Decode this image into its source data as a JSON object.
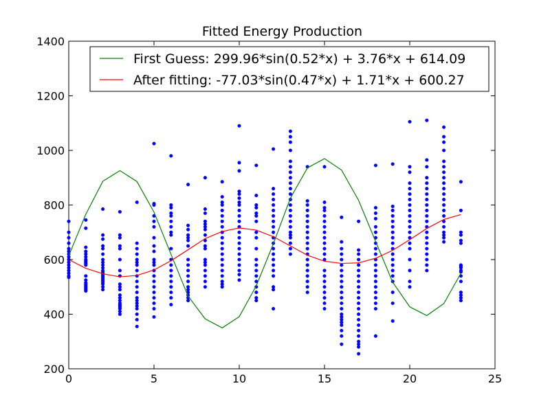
{
  "chart_data": {
    "type": "scatter",
    "title": "Fitted Energy Production",
    "xlabel": "",
    "ylabel": "",
    "xlim": [
      0,
      25
    ],
    "ylim": [
      200,
      1400
    ],
    "xticks": [
      0,
      5,
      10,
      15,
      20,
      25
    ],
    "yticks": [
      200,
      400,
      600,
      800,
      1000,
      1200,
      1400
    ],
    "grid": false,
    "legend_placement": "top-right",
    "colors": {
      "scatter": "#0000ff",
      "first_guess": "#008000",
      "after_fitting": "#ff0000"
    },
    "scatter": {
      "x": [
        0,
        0,
        0,
        0,
        0,
        0,
        0,
        0,
        0,
        0,
        0,
        0,
        0,
        0,
        0,
        0,
        1,
        1,
        1,
        1,
        1,
        1,
        1,
        1,
        1,
        1,
        1,
        1,
        1,
        1,
        1,
        1,
        1,
        1,
        1,
        1,
        2,
        2,
        2,
        2,
        2,
        2,
        2,
        2,
        2,
        2,
        2,
        2,
        2,
        2,
        2,
        2,
        2,
        2,
        2,
        2,
        2,
        2,
        2,
        3,
        3,
        3,
        3,
        3,
        3,
        3,
        3,
        3,
        3,
        3,
        3,
        3,
        3,
        3,
        3,
        3,
        3,
        3,
        3,
        3,
        4,
        4,
        4,
        4,
        4,
        4,
        4,
        4,
        4,
        4,
        4,
        4,
        4,
        4,
        4,
        4,
        4,
        4,
        4,
        4,
        5,
        5,
        5,
        5,
        5,
        5,
        5,
        5,
        5,
        5,
        5,
        5,
        5,
        5,
        5,
        5,
        5,
        5,
        5,
        5,
        5,
        6,
        6,
        6,
        6,
        6,
        6,
        6,
        6,
        6,
        6,
        6,
        6,
        6,
        6,
        6,
        6,
        6,
        6,
        6,
        7,
        7,
        7,
        7,
        7,
        7,
        7,
        7,
        7,
        7,
        7,
        7,
        7,
        7,
        7,
        7,
        7,
        7,
        8,
        8,
        8,
        8,
        8,
        8,
        8,
        8,
        8,
        8,
        8,
        8,
        8,
        8,
        8,
        8,
        8,
        8,
        9,
        9,
        9,
        9,
        9,
        9,
        9,
        9,
        9,
        9,
        9,
        9,
        9,
        9,
        9,
        9,
        9,
        9,
        9,
        9,
        10,
        10,
        10,
        10,
        10,
        10,
        10,
        10,
        10,
        10,
        10,
        10,
        10,
        10,
        10,
        10,
        10,
        10,
        10,
        10,
        10,
        10,
        11,
        11,
        11,
        11,
        11,
        11,
        11,
        11,
        11,
        11,
        11,
        11,
        11,
        11,
        11,
        11,
        11,
        11,
        11,
        12,
        12,
        12,
        12,
        12,
        12,
        12,
        12,
        12,
        12,
        12,
        12,
        12,
        12,
        12,
        12,
        12,
        12,
        12,
        12,
        12,
        13,
        13,
        13,
        13,
        13,
        13,
        13,
        13,
        13,
        13,
        13,
        13,
        13,
        13,
        13,
        13,
        13,
        13,
        13,
        13,
        13,
        13,
        13,
        14,
        14,
        14,
        14,
        14,
        14,
        14,
        14,
        14,
        14,
        14,
        14,
        14,
        14,
        14,
        14,
        14,
        14,
        14,
        15,
        15,
        15,
        15,
        15,
        15,
        15,
        15,
        15,
        15,
        15,
        15,
        15,
        15,
        15,
        15,
        15,
        15,
        15,
        15,
        15,
        16,
        16,
        16,
        16,
        16,
        16,
        16,
        16,
        16,
        16,
        16,
        16,
        16,
        16,
        16,
        16,
        16,
        16,
        16,
        16,
        16,
        16,
        17,
        17,
        17,
        17,
        17,
        17,
        17,
        17,
        17,
        17,
        17,
        17,
        17,
        17,
        17,
        17,
        17,
        17,
        17,
        17,
        17,
        17,
        18,
        18,
        18,
        18,
        18,
        18,
        18,
        18,
        18,
        18,
        18,
        18,
        18,
        18,
        18,
        18,
        18,
        18,
        18,
        18,
        18,
        19,
        19,
        19,
        19,
        19,
        19,
        19,
        19,
        19,
        19,
        19,
        19,
        19,
        19,
        19,
        19,
        19,
        19,
        19,
        20,
        20,
        20,
        20,
        20,
        20,
        20,
        20,
        20,
        20,
        20,
        20,
        20,
        20,
        20,
        20,
        20,
        20,
        20,
        20,
        21,
        21,
        21,
        21,
        21,
        21,
        21,
        21,
        21,
        21,
        21,
        21,
        21,
        21,
        21,
        21,
        21,
        21,
        21,
        21,
        21,
        22,
        22,
        22,
        22,
        22,
        22,
        22,
        22,
        22,
        22,
        22,
        22,
        22,
        22,
        22,
        22,
        22,
        22,
        22,
        22,
        22,
        23,
        23,
        23,
        23,
        23,
        23,
        23,
        23,
        23,
        23,
        23,
        23,
        23,
        23,
        23,
        23,
        23
      ],
      "y": [
        740,
        700,
        680,
        660,
        640,
        630,
        620,
        610,
        600,
        590,
        580,
        570,
        560,
        550,
        540,
        535,
        745,
        715,
        645,
        630,
        620,
        610,
        600,
        595,
        590,
        585,
        580,
        540,
        525,
        515,
        505,
        495,
        490,
        485,
        500,
        510,
        785,
        690,
        675,
        650,
        640,
        620,
        600,
        590,
        580,
        570,
        560,
        555,
        550,
        545,
        540,
        535,
        530,
        525,
        520,
        515,
        510,
        500,
        490,
        775,
        690,
        680,
        650,
        640,
        600,
        560,
        540,
        510,
        500,
        490,
        470,
        460,
        450,
        440,
        435,
        430,
        425,
        420,
        410,
        400,
        810,
        660,
        640,
        620,
        600,
        590,
        580,
        560,
        540,
        520,
        500,
        480,
        460,
        450,
        440,
        430,
        420,
        400,
        380,
        355,
        1025,
        805,
        800,
        760,
        740,
        720,
        680,
        650,
        630,
        600,
        590,
        580,
        560,
        540,
        520,
        500,
        480,
        460,
        440,
        420,
        390,
        980,
        800,
        790,
        770,
        760,
        740,
        720,
        700,
        690,
        640,
        600,
        580,
        560,
        540,
        520,
        500,
        480,
        460,
        435,
        875,
        725,
        710,
        690,
        680,
        670,
        650,
        600,
        580,
        560,
        540,
        520,
        500,
        490,
        480,
        470,
        460,
        450,
        900,
        785,
        770,
        740,
        730,
        720,
        710,
        690,
        670,
        650,
        640,
        600,
        590,
        580,
        560,
        540,
        520,
        500,
        885,
        830,
        810,
        800,
        780,
        760,
        740,
        720,
        700,
        680,
        660,
        640,
        620,
        600,
        580,
        560,
        540,
        520,
        510,
        500,
        1090,
        955,
        925,
        850,
        840,
        825,
        810,
        800,
        780,
        760,
        740,
        720,
        700,
        680,
        660,
        640,
        620,
        600,
        580,
        560,
        545,
        525,
        945,
        835,
        800,
        790,
        770,
        760,
        740,
        700,
        680,
        640,
        600,
        580,
        560,
        540,
        520,
        500,
        480,
        460,
        450,
        1005,
        860,
        840,
        820,
        800,
        780,
        760,
        740,
        720,
        700,
        680,
        660,
        640,
        620,
        600,
        580,
        560,
        540,
        500,
        490,
        420,
        1070,
        1050,
        1030,
        1000,
        960,
        940,
        920,
        900,
        880,
        860,
        840,
        820,
        800,
        780,
        760,
        740,
        720,
        700,
        690,
        680,
        660,
        640,
        620,
        940,
        815,
        800,
        780,
        760,
        740,
        720,
        700,
        680,
        660,
        640,
        620,
        600,
        580,
        560,
        540,
        520,
        500,
        480,
        940,
        810,
        790,
        780,
        760,
        740,
        720,
        700,
        680,
        660,
        640,
        620,
        600,
        560,
        540,
        520,
        500,
        480,
        460,
        440,
        420,
        755,
        665,
        640,
        620,
        600,
        580,
        560,
        540,
        520,
        500,
        480,
        460,
        440,
        420,
        400,
        390,
        380,
        370,
        360,
        340,
        320,
        290,
        740,
        635,
        620,
        600,
        580,
        560,
        540,
        520,
        500,
        480,
        460,
        440,
        420,
        400,
        380,
        360,
        340,
        320,
        300,
        290,
        280,
        255,
        945,
        790,
        770,
        750,
        720,
        700,
        680,
        660,
        640,
        620,
        600,
        580,
        560,
        540,
        520,
        500,
        480,
        460,
        440,
        420,
        320,
        950,
        795,
        780,
        760,
        740,
        720,
        700,
        680,
        660,
        640,
        620,
        600,
        580,
        560,
        540,
        520,
        480,
        440,
        375,
        1105,
        940,
        920,
        880,
        860,
        840,
        820,
        800,
        780,
        760,
        740,
        720,
        700,
        680,
        660,
        640,
        600,
        560,
        520,
        500,
        1110,
        965,
        940,
        900,
        880,
        860,
        840,
        820,
        800,
        780,
        760,
        740,
        720,
        700,
        680,
        660,
        640,
        620,
        600,
        580,
        560,
        1085,
        1050,
        1030,
        1000,
        960,
        940,
        920,
        900,
        880,
        860,
        840,
        820,
        800,
        780,
        760,
        740,
        720,
        700,
        690,
        680,
        665,
        885,
        780,
        700,
        690,
        670,
        660,
        580,
        575,
        570,
        560,
        555,
        540,
        520,
        480,
        470,
        460,
        450
      ]
    },
    "series": [
      {
        "name": "First Guess: 299.96*sin(0.52*x) + 3.76*x + 614.09",
        "color": "#008000",
        "x": [
          0,
          1,
          2,
          3,
          4,
          5,
          6,
          7,
          8,
          9,
          10,
          11,
          12,
          13,
          14,
          15,
          16,
          17,
          18,
          19,
          20,
          21,
          22,
          23
        ],
        "y": [
          614,
          766,
          887,
          926,
          886,
          774,
          619,
          466,
          383,
          350,
          391,
          504,
          658,
          825,
          936,
          970,
          928,
          817,
          666,
          517,
          427,
          395,
          439,
          550
        ]
      },
      {
        "name": "After fitting: -77.03*sin(0.47*x) + 1.71*x + 600.27",
        "color": "#ff0000",
        "x": [
          0,
          1,
          2,
          3,
          4,
          5,
          6,
          7,
          8,
          9,
          10,
          11,
          12,
          13,
          14,
          15,
          16,
          17,
          18,
          19,
          20,
          21,
          22,
          23
        ],
        "y": [
          600,
          568,
          548,
          537,
          542,
          562,
          596,
          636,
          677,
          703,
          716,
          708,
          684,
          650,
          616,
          594,
          586,
          588,
          605,
          634,
          673,
          714,
          747,
          765
        ]
      }
    ]
  }
}
